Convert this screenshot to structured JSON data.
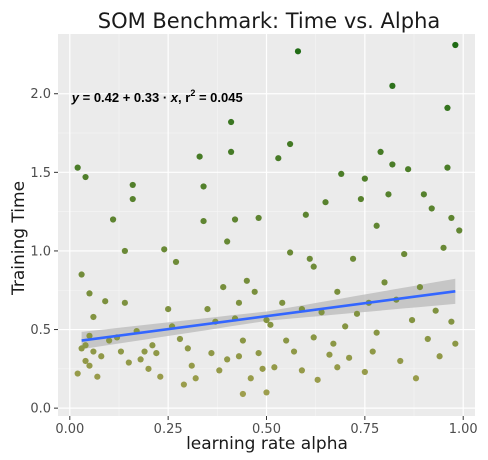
{
  "chart_data": {
    "type": "scatter",
    "title": "SOM Benchmark: Time vs. Alpha",
    "xlabel": "learning rate alpha",
    "ylabel": "Training Time",
    "xlim": [
      -0.03,
      1.03
    ],
    "ylim": [
      -0.05,
      2.38
    ],
    "x_ticks": [
      0,
      0.25,
      0.5,
      0.75,
      1
    ],
    "x_tick_labels": [
      "0.00",
      "0.25",
      "0.50",
      "0.75",
      "1.00"
    ],
    "y_ticks": [
      0,
      0.5,
      1,
      1.5,
      2
    ],
    "y_tick_labels": [
      "0.0",
      "0.5",
      "1.0",
      "1.5",
      "2.0"
    ],
    "grid": true,
    "annotation": {
      "y_label": "y",
      "eq_text": " = 0.42 + 0.33 · ",
      "x_label": "x",
      "r_text": ",  r",
      "sup": "2",
      "r_value": " = 0.045",
      "anchor_x": 0.005,
      "anchor_y": 1.98
    },
    "fit": {
      "intercept": 0.42,
      "slope": 0.33,
      "x_range": [
        0.03,
        0.98
      ],
      "line_color": "#3366ff",
      "band_color": "#bdbdbd",
      "band_half_width": [
        0.055,
        0.03,
        0.08
      ]
    },
    "color_low": "#a3a050",
    "color_high": "#1f6b14",
    "points": [
      [
        0.02,
        0.22
      ],
      [
        0.03,
        0.38
      ],
      [
        0.04,
        0.3
      ],
      [
        0.05,
        0.46
      ],
      [
        0.06,
        0.58
      ],
      [
        0.03,
        0.85
      ],
      [
        0.04,
        0.4
      ],
      [
        0.05,
        0.27
      ],
      [
        0.08,
        0.33
      ],
      [
        0.09,
        0.68
      ],
      [
        0.1,
        0.43
      ],
      [
        0.02,
        1.53
      ],
      [
        0.04,
        1.47
      ],
      [
        0.05,
        0.73
      ],
      [
        0.06,
        0.36
      ],
      [
        0.07,
        0.2
      ],
      [
        0.11,
        1.2
      ],
      [
        0.12,
        0.45
      ],
      [
        0.13,
        0.36
      ],
      [
        0.14,
        0.67
      ],
      [
        0.15,
        0.29
      ],
      [
        0.16,
        1.42
      ],
      [
        0.16,
        1.33
      ],
      [
        0.17,
        0.49
      ],
      [
        0.18,
        0.31
      ],
      [
        0.14,
        1.0
      ],
      [
        0.19,
        0.36
      ],
      [
        0.2,
        0.25
      ],
      [
        0.21,
        0.4
      ],
      [
        0.22,
        0.35
      ],
      [
        0.23,
        0.2
      ],
      [
        0.24,
        1.01
      ],
      [
        0.25,
        0.63
      ],
      [
        0.26,
        0.52
      ],
      [
        0.27,
        0.93
      ],
      [
        0.28,
        0.44
      ],
      [
        0.29,
        0.15
      ],
      [
        0.3,
        0.38
      ],
      [
        0.31,
        0.27
      ],
      [
        0.32,
        0.19
      ],
      [
        0.33,
        1.6
      ],
      [
        0.34,
        1.41
      ],
      [
        0.34,
        1.19
      ],
      [
        0.35,
        0.63
      ],
      [
        0.36,
        0.35
      ],
      [
        0.37,
        0.55
      ],
      [
        0.38,
        0.24
      ],
      [
        0.39,
        0.77
      ],
      [
        0.4,
        0.31
      ],
      [
        0.4,
        1.06
      ],
      [
        0.41,
        1.63
      ],
      [
        0.41,
        1.82
      ],
      [
        0.42,
        1.2
      ],
      [
        0.42,
        0.57
      ],
      [
        0.43,
        0.33
      ],
      [
        0.43,
        0.67
      ],
      [
        0.44,
        0.43
      ],
      [
        0.44,
        0.09
      ],
      [
        0.45,
        0.81
      ],
      [
        0.46,
        0.19
      ],
      [
        0.47,
        0.74
      ],
      [
        0.48,
        0.35
      ],
      [
        0.48,
        1.21
      ],
      [
        0.49,
        0.25
      ],
      [
        0.5,
        0.56
      ],
      [
        0.5,
        0.1
      ],
      [
        0.51,
        0.53
      ],
      [
        0.52,
        0.26
      ],
      [
        0.53,
        1.59
      ],
      [
        0.54,
        0.67
      ],
      [
        0.55,
        0.43
      ],
      [
        0.56,
        1.68
      ],
      [
        0.56,
        0.99
      ],
      [
        0.57,
        0.36
      ],
      [
        0.58,
        2.27
      ],
      [
        0.59,
        0.63
      ],
      [
        0.59,
        0.24
      ],
      [
        0.6,
        1.23
      ],
      [
        0.61,
        0.95
      ],
      [
        0.62,
        0.45
      ],
      [
        0.62,
        0.9
      ],
      [
        0.63,
        0.18
      ],
      [
        0.64,
        0.61
      ],
      [
        0.65,
        1.31
      ],
      [
        0.66,
        0.34
      ],
      [
        0.67,
        0.41
      ],
      [
        0.68,
        0.26
      ],
      [
        0.68,
        0.74
      ],
      [
        0.69,
        1.49
      ],
      [
        0.7,
        0.52
      ],
      [
        0.71,
        0.32
      ],
      [
        0.72,
        0.95
      ],
      [
        0.73,
        0.6
      ],
      [
        0.74,
        1.33
      ],
      [
        0.75,
        0.23
      ],
      [
        0.75,
        1.46
      ],
      [
        0.76,
        0.67
      ],
      [
        0.77,
        0.36
      ],
      [
        0.78,
        1.16
      ],
      [
        0.78,
        0.48
      ],
      [
        0.79,
        1.63
      ],
      [
        0.8,
        0.8
      ],
      [
        0.81,
        1.36
      ],
      [
        0.82,
        2.05
      ],
      [
        0.82,
        1.55
      ],
      [
        0.83,
        0.69
      ],
      [
        0.84,
        0.3
      ],
      [
        0.85,
        0.98
      ],
      [
        0.86,
        1.52
      ],
      [
        0.87,
        0.56
      ],
      [
        0.88,
        0.19
      ],
      [
        0.89,
        0.77
      ],
      [
        0.9,
        1.36
      ],
      [
        0.91,
        0.44
      ],
      [
        0.92,
        1.27
      ],
      [
        0.93,
        0.62
      ],
      [
        0.94,
        0.33
      ],
      [
        0.95,
        1.02
      ],
      [
        0.96,
        1.91
      ],
      [
        0.96,
        1.53
      ],
      [
        0.97,
        0.55
      ],
      [
        0.98,
        2.31
      ],
      [
        0.98,
        0.41
      ],
      [
        0.99,
        1.13
      ],
      [
        0.97,
        1.21
      ]
    ]
  }
}
